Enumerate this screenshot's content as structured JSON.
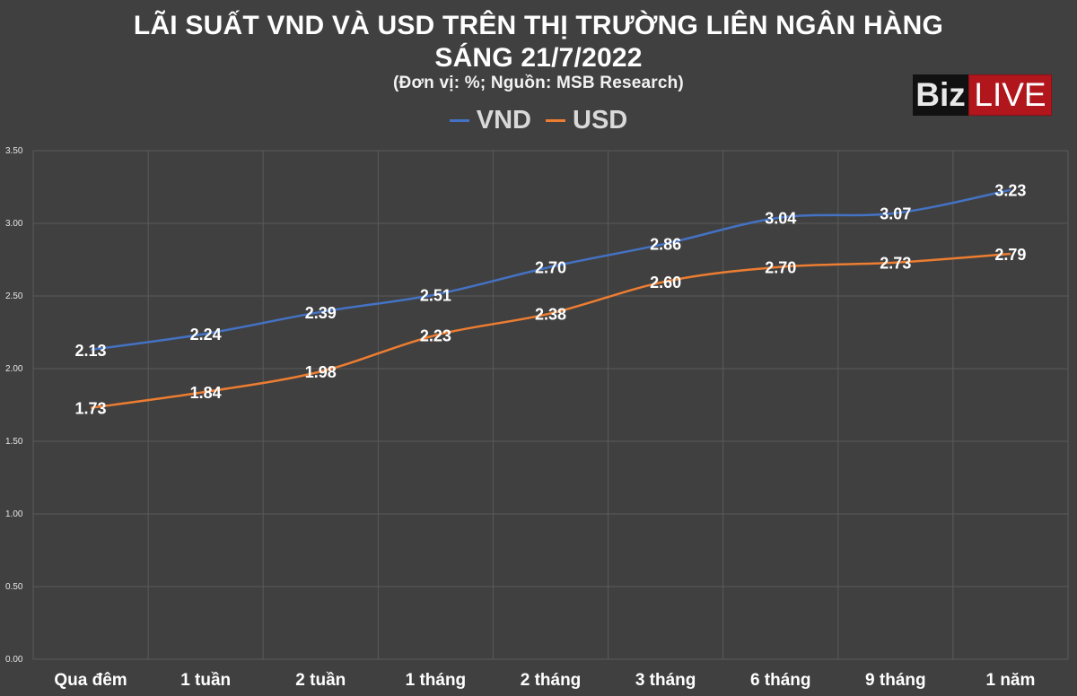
{
  "header": {
    "title_line1": "LÃI SUẤT VND VÀ USD TRÊN THỊ TRƯỜNG LIÊN NGÂN HÀNG",
    "title_line2": "SÁNG 21/7/2022",
    "subtitle": "(Đơn vị: %; Nguồn: MSB Research)"
  },
  "logo": {
    "part1": "Biz",
    "part2": "LIVE"
  },
  "colors": {
    "background": "#404040",
    "vnd": "#4472c4",
    "usd": "#ed7d31",
    "grid": "#5a5a5a"
  },
  "chart_data": {
    "type": "line",
    "categories": [
      "Qua đêm",
      "1 tuần",
      "2 tuần",
      "1 tháng",
      "2 tháng",
      "3 tháng",
      "6 tháng",
      "9 tháng",
      "1 năm"
    ],
    "series": [
      {
        "name": "VND",
        "color": "#4472c4",
        "values": [
          2.13,
          2.24,
          2.39,
          2.51,
          2.7,
          2.86,
          3.04,
          3.07,
          3.23
        ],
        "labels": [
          "2.13",
          "2.24",
          "2.39",
          "2.51",
          "2.70",
          "2.86",
          "3.04",
          "3.07",
          "3.23"
        ]
      },
      {
        "name": "USD",
        "color": "#ed7d31",
        "values": [
          1.73,
          1.84,
          1.98,
          2.23,
          2.38,
          2.6,
          2.7,
          2.73,
          2.79
        ],
        "labels": [
          "1.73",
          "1.84",
          "1.98",
          "2.23",
          "2.38",
          "2.60",
          "2.70",
          "2.73",
          "2.79"
        ]
      }
    ],
    "y_ticks": [
      "0.00",
      "0.50",
      "1.00",
      "1.50",
      "2.00",
      "2.50",
      "3.00",
      "3.50"
    ],
    "ylim": [
      0,
      3.5
    ],
    "grid": true,
    "legend_position": "top-center"
  }
}
